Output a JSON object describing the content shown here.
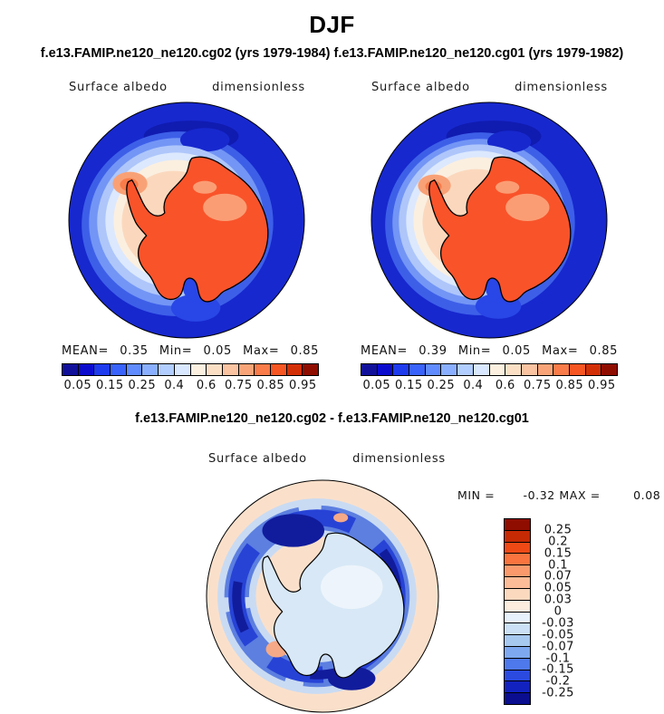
{
  "header": {
    "title": "DJF",
    "subtitle": "f.e13.FAMIP.ne120_ne120.cg02 (yrs 1979-1984) f.e13.FAMIP.ne120_ne120.cg01 (yrs 1979-1982)"
  },
  "panels": {
    "left": {
      "var_label": "Surface albedo",
      "units_label": "dimensionless",
      "stats": {
        "mean_label": "MEAN=",
        "mean_value": "0.35",
        "min_label": "Min=",
        "min_value": "0.05",
        "max_label": "Max=",
        "max_value": "0.85"
      }
    },
    "right": {
      "var_label": "Surface albedo",
      "units_label": "dimensionless",
      "stats": {
        "mean_label": "MEAN=",
        "mean_value": "0.39",
        "min_label": "Min=",
        "min_value": "0.05",
        "max_label": "Max=",
        "max_value": "0.85"
      }
    },
    "diff": {
      "title": "f.e13.FAMIP.ne120_ne120.cg02 - f.e13.FAMIP.ne120_ne120.cg01",
      "var_label": "Surface albedo",
      "units_label": "dimensionless",
      "minmax": {
        "min_label": "MIN = ",
        "min_value": "-0.32",
        "max_label": " MAX = ",
        "max_value": "0.08"
      }
    }
  },
  "albedo_bar": {
    "tick_labels": [
      "0.05",
      "0.15",
      "0.25",
      "0.4",
      "0.6",
      "0.75",
      "0.85",
      "0.95"
    ],
    "colors": [
      "#10109B",
      "#0B0BCE",
      "#1F3BEE",
      "#3A63FB",
      "#608CFF",
      "#8AAFFF",
      "#B2CDFF",
      "#D9E7FF",
      "#FCF0E1",
      "#FBDFC5",
      "#FAC3A2",
      "#F9A478",
      "#F97C4A",
      "#F75623",
      "#D32F06",
      "#8F0D00"
    ]
  },
  "diff_bar": {
    "tick_labels_top_to_bottom": [
      "0.25",
      "0.2",
      "0.15",
      "0.1",
      "0.07",
      "0.05",
      "0.03",
      "0",
      "-0.03",
      "-0.05",
      "-0.07",
      "-0.1",
      "-0.15",
      "-0.2",
      "-0.25"
    ],
    "colors_top_to_bottom": [
      "#8F0D00",
      "#C62A04",
      "#EF4A16",
      "#F9743F",
      "#FA9A6C",
      "#FBBC97",
      "#FBD9BF",
      "#FCEDDF",
      "#E7F1FB",
      "#CBDFF5",
      "#A7C8EF",
      "#7EA9F0",
      "#4E79EC",
      "#2B4BE0",
      "#1222BE",
      "#0A0E8F"
    ]
  },
  "map_colors": {
    "outline": "#000000",
    "albedo": {
      "ocean": "#1728CE",
      "ocean_dark": "#101BB0",
      "ice1": "#3D5FE8",
      "ice2": "#7395F5",
      "ice3": "#AEC6FA",
      "ice4": "#DCE8FD",
      "ice_cream": "#FBEFE0",
      "ice_peach": "#FBD8BD",
      "warm_blob_outer": "#F9A176",
      "warm_blob_core": "#F97C4A",
      "continent": "#F9532A",
      "continent_light": "#FB9D74",
      "polynya": "#2946E6"
    },
    "diff": {
      "background": "#FAE0CB",
      "fringe": "#C9DBF3",
      "ring_mid": "#5C7FE0",
      "ring_strong": "#2743D6",
      "ring_dark": "#111C9C",
      "continent": "#D8E8F6",
      "continent_patch": "#EDF4FB",
      "warm_spot": "#F5A987"
    }
  },
  "chart_data": [
    {
      "type": "heatmap",
      "subtype": "south-polar-stereographic-map",
      "title": "f.e13.FAMIP.ne120_ne120.cg02 (yrs 1979-1984)",
      "variable": "Surface albedo",
      "units": "dimensionless",
      "region": "Antarctica and Southern Ocean",
      "stats": {
        "mean": 0.35,
        "min": 0.05,
        "max": 0.85
      },
      "contour_levels": [
        0.05,
        0.1,
        0.15,
        0.2,
        0.25,
        0.3,
        0.4,
        0.5,
        0.6,
        0.7,
        0.75,
        0.8,
        0.85,
        0.9,
        0.95
      ],
      "labeled_levels": [
        0.05,
        0.15,
        0.25,
        0.4,
        0.6,
        0.75,
        0.85,
        0.95
      ],
      "palette": "16-class blue(low) to red(high)",
      "legend_position": "below",
      "notes": "ocean ~0.05-0.1 (dark blue), sea-ice ring gradient, Antarctic continent ~0.8 (orange-red)"
    },
    {
      "type": "heatmap",
      "subtype": "south-polar-stereographic-map",
      "title": "f.e13.FAMIP.ne120_ne120.cg01 (yrs 1979-1982)",
      "variable": "Surface albedo",
      "units": "dimensionless",
      "region": "Antarctica and Southern Ocean",
      "stats": {
        "mean": 0.39,
        "min": 0.05,
        "max": 0.85
      },
      "contour_levels": [
        0.05,
        0.1,
        0.15,
        0.2,
        0.25,
        0.3,
        0.4,
        0.5,
        0.6,
        0.7,
        0.75,
        0.8,
        0.85,
        0.9,
        0.95
      ],
      "labeled_levels": [
        0.05,
        0.15,
        0.25,
        0.4,
        0.6,
        0.75,
        0.85,
        0.95
      ],
      "palette": "16-class blue(low) to red(high)",
      "legend_position": "below"
    },
    {
      "type": "heatmap",
      "subtype": "south-polar-stereographic-map-difference",
      "title": "f.e13.FAMIP.ne120_ne120.cg02 - f.e13.FAMIP.ne120_ne120.cg01",
      "variable": "Surface albedo",
      "units": "dimensionless",
      "stats": {
        "min": -0.32,
        "max": 0.08
      },
      "contour_levels": [
        -0.25,
        -0.2,
        -0.15,
        -0.1,
        -0.07,
        -0.05,
        -0.03,
        0,
        0.03,
        0.05,
        0.07,
        0.1,
        0.15,
        0.2,
        0.25
      ],
      "palette": "16-class red(positive) to blue(negative)",
      "legend_position": "right",
      "notes": "negative differences (dark blue) concentrated in sea-ice ring; continent slightly negative (pale blue); background near zero (pale peach)"
    }
  ]
}
